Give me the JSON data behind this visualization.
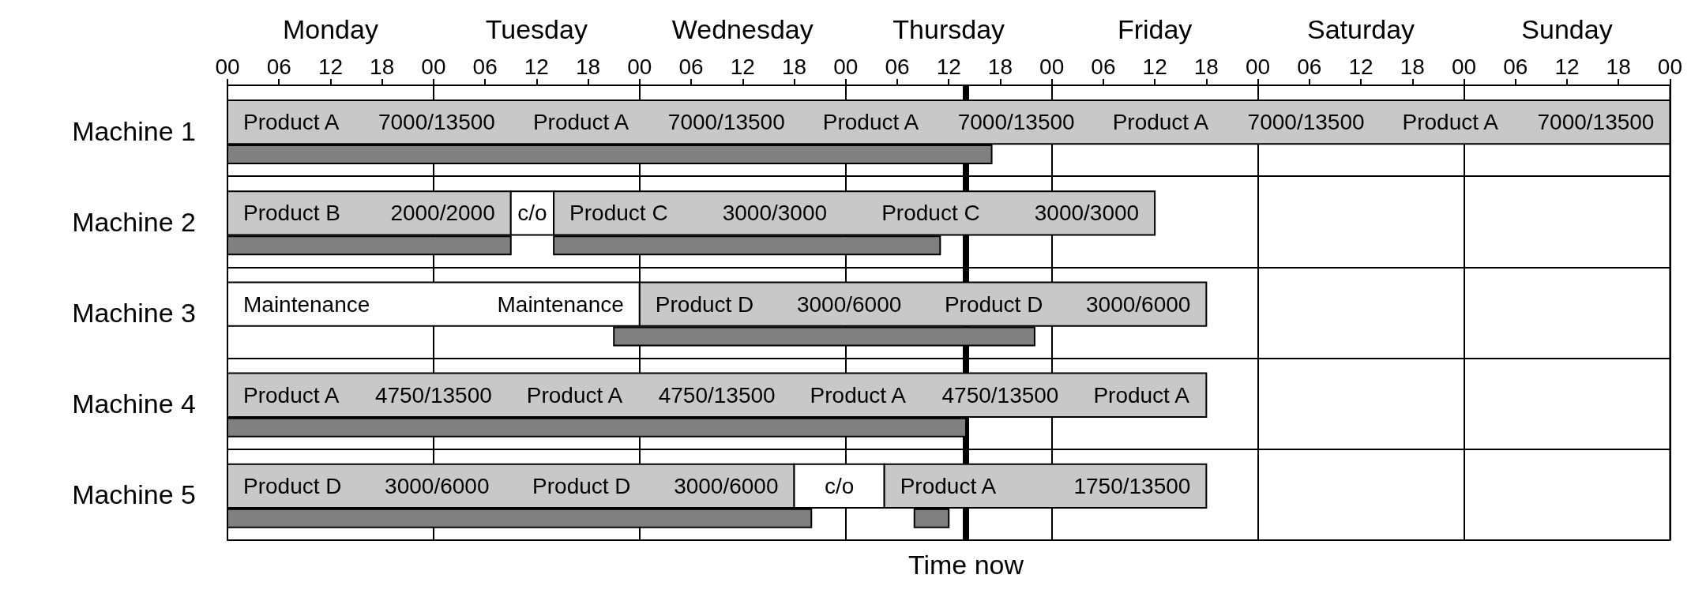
{
  "chart_data": {
    "type": "bar",
    "orientation": "horizontal",
    "categories": [
      "Machine 1",
      "Machine 2",
      "Machine 3",
      "Machine 4",
      "Machine 5"
    ],
    "annotations": [
      "Monday",
      "Tuesday",
      "Wednesday",
      "Thursday",
      "Friday",
      "Saturday",
      "Sunday"
    ],
    "series": [
      {
        "colors": [
          "#c8c8c8",
          "#c8c8c8",
          "#ffffff",
          "#c8c8c8",
          "#c8c8c8"
        ],
        "base": [
          0,
          0,
          0,
          0,
          0
        ],
        "values": [
          168,
          33,
          48,
          114,
          66
        ],
        "value_labels": [
          "Product A  7000/13500  Product A  7000/13500  Product A  7000/13500  Product A  7000/13500  Product A  7000/13500",
          "Product B  2000/2000",
          "Maintenance  Maintenance",
          "Product A  4750/13500  Product A  4750/13500  Product A  4750/13500  Product A",
          "Product D  3000/6000  Product D  3000/6000"
        ]
      },
      {
        "colors": [
          null,
          "#ffffff",
          "#c8c8c8",
          null,
          "#ffffff"
        ],
        "base": [
          null,
          33,
          48,
          null,
          66
        ],
        "values": [
          null,
          5,
          66,
          null,
          10.5
        ],
        "value_labels": [
          null,
          "c/o",
          "Product D  3000/6000  Product D  3000/6000",
          null,
          "c/o"
        ]
      },
      {
        "color": "#c8c8c8",
        "base": [
          null,
          38,
          null,
          null,
          76.5
        ],
        "values": [
          null,
          70,
          null,
          null,
          37.5
        ],
        "value_labels": [
          null,
          "Product C  3000/3000  Product C  3000/3000",
          null,
          null,
          "Product A  1750/13500"
        ]
      },
      {
        "color": "#808080",
        "base": [
          0,
          0,
          45,
          0,
          0
        ],
        "values": [
          89,
          33,
          49,
          86,
          68
        ]
      },
      {
        "color": "#808080",
        "base": [
          null,
          38,
          null,
          null,
          80
        ],
        "values": [
          null,
          45,
          null,
          null,
          4
        ]
      }
    ],
    "xlim": [
      0,
      168
    ],
    "xticks": [
      {
        "value": 0,
        "label": "00"
      },
      {
        "value": 6,
        "label": "06"
      },
      {
        "value": 12,
        "label": "12"
      },
      {
        "value": 18,
        "label": "18"
      },
      {
        "value": 24,
        "label": "00"
      },
      {
        "value": 30,
        "label": "06"
      },
      {
        "value": 36,
        "label": "12"
      },
      {
        "value": 42,
        "label": "18"
      },
      {
        "value": 48,
        "label": "00"
      },
      {
        "value": 54,
        "label": "06"
      },
      {
        "value": 60,
        "label": "12"
      },
      {
        "value": 66,
        "label": "18"
      },
      {
        "value": 72,
        "label": "00"
      },
      {
        "value": 78,
        "label": "06"
      },
      {
        "value": 84,
        "label": "12"
      },
      {
        "value": 90,
        "label": "18"
      },
      {
        "value": 96,
        "label": "00"
      },
      {
        "value": 102,
        "label": "06"
      },
      {
        "value": 108,
        "label": "12"
      },
      {
        "value": 114,
        "label": "18"
      },
      {
        "value": 120,
        "label": "00"
      },
      {
        "value": 126,
        "label": "06"
      },
      {
        "value": 132,
        "label": "12"
      },
      {
        "value": 138,
        "label": "18"
      },
      {
        "value": 144,
        "label": "00"
      },
      {
        "value": 150,
        "label": "06"
      },
      {
        "value": 156,
        "label": "12"
      },
      {
        "value": 162,
        "label": "18"
      },
      {
        "value": 168,
        "label": "00"
      }
    ],
    "grid": true,
    "ref_lines": [
      {
        "axis": "x",
        "value": 86,
        "label": "Time now",
        "color": "#000000"
      }
    ]
  }
}
